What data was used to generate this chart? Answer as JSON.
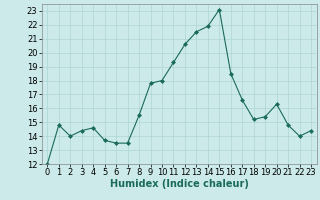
{
  "x": [
    0,
    1,
    2,
    3,
    4,
    5,
    6,
    7,
    8,
    9,
    10,
    11,
    12,
    13,
    14,
    15,
    16,
    17,
    18,
    19,
    20,
    21,
    22,
    23
  ],
  "y": [
    12,
    14.8,
    14.0,
    14.4,
    14.6,
    13.7,
    13.5,
    13.5,
    15.5,
    17.8,
    18.0,
    19.3,
    20.6,
    21.5,
    21.9,
    23.1,
    18.5,
    16.6,
    15.2,
    15.4,
    16.3,
    14.8,
    14.0,
    14.4
  ],
  "line_color": "#1a6b5a",
  "marker": "D",
  "marker_size": 2,
  "bg_color": "#cceaea",
  "grid_color": "#aed4d4",
  "xlabel": "Humidex (Indice chaleur)",
  "ylim": [
    12,
    23.5
  ],
  "xlim": [
    -0.5,
    23.5
  ],
  "yticks": [
    12,
    13,
    14,
    15,
    16,
    17,
    18,
    19,
    20,
    21,
    22,
    23
  ],
  "xticks": [
    0,
    1,
    2,
    3,
    4,
    5,
    6,
    7,
    8,
    9,
    10,
    11,
    12,
    13,
    14,
    15,
    16,
    17,
    18,
    19,
    20,
    21,
    22,
    23
  ],
  "xlabel_fontsize": 7,
  "tick_fontsize": 6
}
